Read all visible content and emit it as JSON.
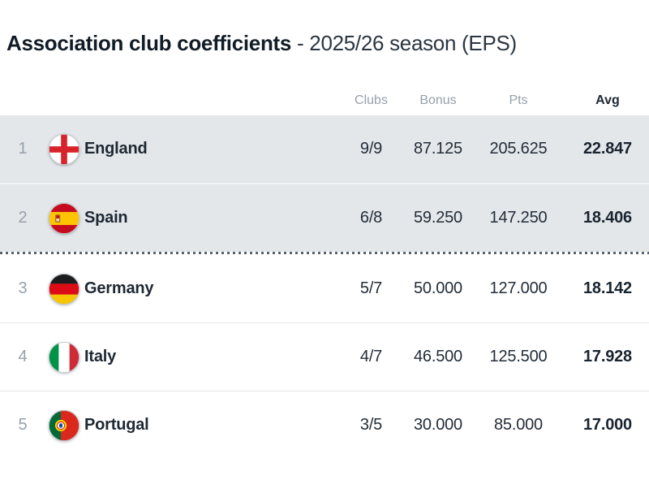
{
  "title": {
    "main": "Association club coefficients",
    "suffix": "- 2025/26 season (EPS)"
  },
  "table": {
    "columns": {
      "clubs": "Clubs",
      "bonus": "Bonus",
      "pts": "Pts",
      "avg": "Avg"
    },
    "rows": [
      {
        "rank": "1",
        "country": "England",
        "flag": "england",
        "clubs": "9/9",
        "bonus": "87.125",
        "pts": "205.625",
        "avg": "22.847",
        "highlighted": true
      },
      {
        "rank": "2",
        "country": "Spain",
        "flag": "spain",
        "clubs": "6/8",
        "bonus": "59.250",
        "pts": "147.250",
        "avg": "18.406",
        "highlighted": true
      },
      {
        "rank": "3",
        "country": "Germany",
        "flag": "germany",
        "clubs": "5/7",
        "bonus": "50.000",
        "pts": "127.000",
        "avg": "18.142",
        "highlighted": false
      },
      {
        "rank": "4",
        "country": "Italy",
        "flag": "italy",
        "clubs": "4/7",
        "bonus": "46.500",
        "pts": "125.500",
        "avg": "17.928",
        "highlighted": false
      },
      {
        "rank": "5",
        "country": "Portugal",
        "flag": "portugal",
        "clubs": "3/5",
        "bonus": "30.000",
        "pts": "85.000",
        "avg": "17.000",
        "highlighted": false
      }
    ]
  },
  "colors": {
    "highlighted_row_bg": "#e3e7ea",
    "cutoff_divider": "#59636d",
    "header_text": "#96a0ab",
    "body_text": "#1e2833"
  }
}
